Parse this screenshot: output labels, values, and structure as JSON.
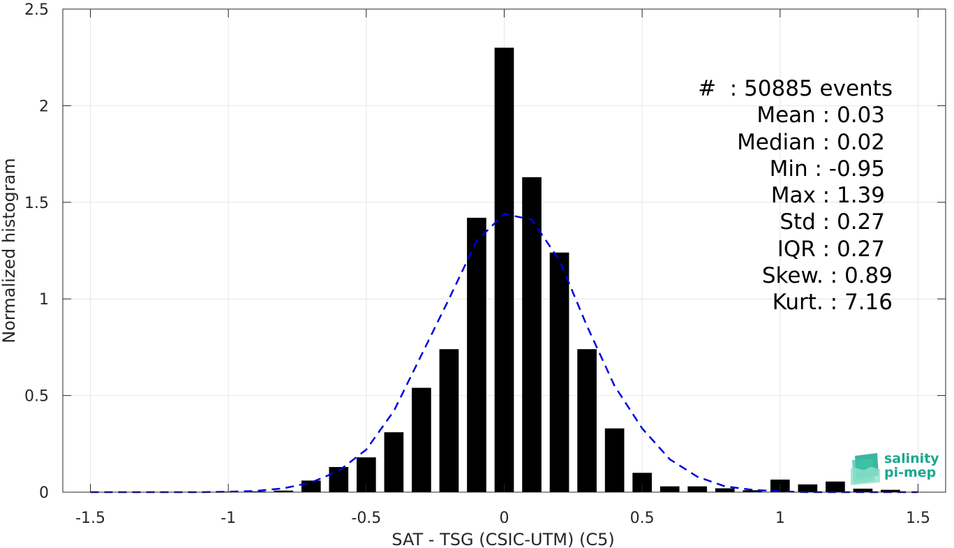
{
  "chart_data": {
    "type": "bar",
    "xlabel": "SAT - TSG (CSIC-UTM) (C5)",
    "ylabel": "Normalized histogram",
    "xlim": [
      -1.6,
      1.6
    ],
    "ylim": [
      0,
      2.5
    ],
    "xticks": [
      -1.5,
      -1,
      -0.5,
      0,
      0.5,
      1,
      1.5
    ],
    "xtick_labels": [
      "-1.5",
      "-1",
      "-0.5",
      "0",
      "0.5",
      "1",
      "1.5"
    ],
    "yticks": [
      0,
      0.5,
      1,
      1.5,
      2,
      2.5
    ],
    "ytick_labels": [
      "0",
      "0.5",
      "1",
      "1.5",
      "2",
      "2.5"
    ],
    "grid": true,
    "bar_width": 0.07,
    "bars": {
      "x": [
        -1.0,
        -0.9,
        -0.8,
        -0.7,
        -0.6,
        -0.5,
        -0.4,
        -0.3,
        -0.2,
        -0.1,
        0.0,
        0.1,
        0.2,
        0.3,
        0.4,
        0.5,
        0.6,
        0.7,
        0.8,
        0.9,
        1.0,
        1.1,
        1.2,
        1.3,
        1.4
      ],
      "values": [
        0.003,
        0.004,
        0.008,
        0.06,
        0.13,
        0.18,
        0.31,
        0.54,
        0.74,
        1.42,
        2.3,
        1.63,
        1.24,
        0.74,
        0.33,
        0.1,
        0.03,
        0.03,
        0.02,
        0.01,
        0.065,
        0.04,
        0.055,
        0.018,
        0.012
      ],
      "color": "#000000"
    },
    "fit": {
      "style": "dashed",
      "color": "#0000dd",
      "x": [
        -1.5,
        -1.4,
        -1.3,
        -1.2,
        -1.1,
        -1.0,
        -0.9,
        -0.8,
        -0.7,
        -0.6,
        -0.5,
        -0.4,
        -0.3,
        -0.2,
        -0.1,
        0.0,
        0.1,
        0.2,
        0.3,
        0.4,
        0.5,
        0.6,
        0.7,
        0.8,
        0.9,
        1.0,
        1.1,
        1.2,
        1.3,
        1.4,
        1.5
      ],
      "y": [
        0.0,
        0.0,
        0.0,
        0.0,
        0.0,
        0.002,
        0.006,
        0.02,
        0.05,
        0.11,
        0.22,
        0.42,
        0.71,
        1.0,
        1.3,
        1.44,
        1.41,
        1.2,
        0.86,
        0.55,
        0.33,
        0.17,
        0.08,
        0.03,
        0.012,
        0.004,
        0.0,
        0.0,
        0.0,
        0.0,
        0.0
      ]
    },
    "annotations": [
      "#  : 50885 events",
      "Mean : 0.03",
      "Median : 0.02",
      "Min : -0.95",
      "Max : 1.39",
      "Std : 0.27",
      "IQR : 0.27",
      "Skew. : 0.89",
      "Kurt. : 7.16"
    ]
  },
  "logo": {
    "line1": "salinity",
    "line2": "pi-mep",
    "color": "#1aa88f"
  }
}
